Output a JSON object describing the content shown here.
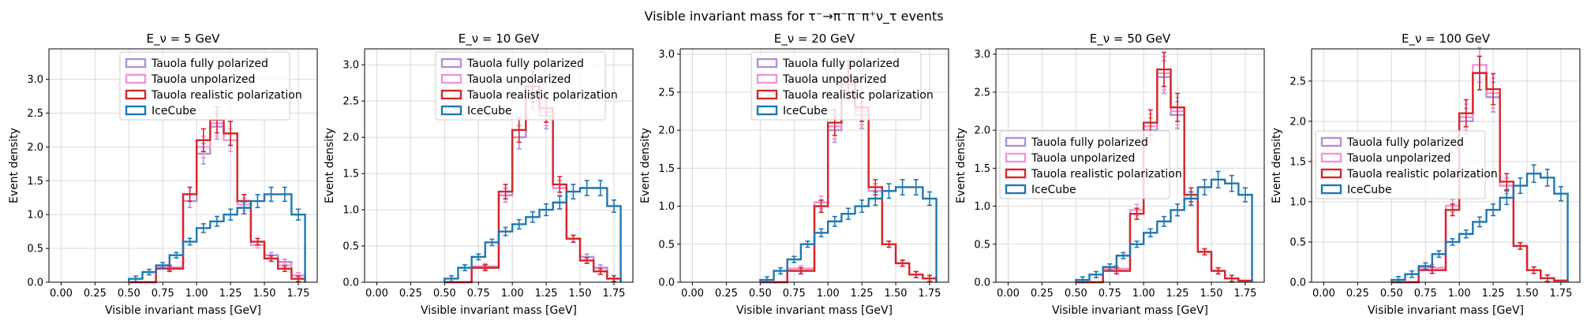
{
  "figure": {
    "suptitle": "Visible invariant mass for τ⁻→π⁻π⁻π⁺ν_τ events"
  },
  "colors": {
    "fully_polarized": "#b38fd9",
    "unpolarized": "#ee96d6",
    "realistic": "#d62728",
    "icecube": "#1f77b4"
  },
  "chart_data": [
    {
      "type": "step-histogram",
      "title": "E_ν = 5 GeV",
      "xlabel": "Visible invariant mass [GeV]",
      "ylabel": "Event density",
      "xlim": [
        -0.09,
        1.89
      ],
      "ylim": [
        0,
        3.45
      ],
      "xticks": [
        "0.00",
        "0.25",
        "0.50",
        "0.75",
        "1.00",
        "1.25",
        "1.50",
        "1.75"
      ],
      "yticks": [
        "0.0",
        "0.5",
        "1.0",
        "1.5",
        "2.0",
        "2.5",
        "3.0"
      ],
      "grid": true,
      "legend_position": "upper-center",
      "series": [
        {
          "name": "Tauola fully polarized",
          "color_key": "fully_polarized",
          "x": [
            0.5,
            0.7,
            0.9,
            1.0,
            1.1,
            1.2,
            1.3,
            1.4,
            1.5,
            1.6,
            1.7,
            1.8
          ],
          "y": [
            0,
            0.2,
            1.2,
            1.9,
            2.3,
            2.2,
            1.2,
            0.6,
            0.4,
            0.3,
            0.1,
            0
          ]
        },
        {
          "name": "Tauola unpolarized",
          "color_key": "unpolarized",
          "x": [
            0.5,
            0.7,
            0.9,
            1.0,
            1.1,
            1.2,
            1.3,
            1.4,
            1.5,
            1.6,
            1.7,
            1.8
          ],
          "y": [
            0,
            0.22,
            1.3,
            2.0,
            2.35,
            2.1,
            1.15,
            0.55,
            0.35,
            0.25,
            0.1,
            0
          ]
        },
        {
          "name": "Tauola realistic polarization",
          "color_key": "realistic",
          "x": [
            0.5,
            0.7,
            0.9,
            1.0,
            1.1,
            1.2,
            1.3,
            1.4,
            1.5,
            1.6,
            1.7,
            1.8
          ],
          "y": [
            0,
            0.2,
            1.3,
            2.1,
            2.4,
            2.2,
            1.2,
            0.6,
            0.35,
            0.2,
            0.05,
            0
          ]
        },
        {
          "name": "IceCube",
          "color_key": "icecube",
          "x": [
            0.5,
            0.6,
            0.7,
            0.8,
            0.9,
            1.0,
            1.1,
            1.2,
            1.3,
            1.4,
            1.5,
            1.6,
            1.7,
            1.8
          ],
          "y": [
            0.05,
            0.15,
            0.25,
            0.4,
            0.6,
            0.8,
            0.9,
            1.0,
            1.1,
            1.2,
            1.3,
            1.3,
            1.0,
            0
          ]
        }
      ]
    },
    {
      "type": "step-histogram",
      "title": "E_ν = 10 GeV",
      "xlabel": "Visible invariant mass [GeV]",
      "ylabel": "Event density",
      "xlim": [
        -0.09,
        1.89
      ],
      "ylim": [
        0,
        3.22
      ],
      "xticks": [
        "0.00",
        "0.25",
        "0.50",
        "0.75",
        "1.00",
        "1.25",
        "1.50",
        "1.75"
      ],
      "yticks": [
        "0.0",
        "0.5",
        "1.0",
        "1.5",
        "2.0",
        "2.5",
        "3.0"
      ],
      "grid": true,
      "legend_position": "upper-center",
      "series": [
        {
          "name": "Tauola fully polarized",
          "color_key": "fully_polarized",
          "x": [
            0.5,
            0.7,
            0.9,
            1.0,
            1.1,
            1.2,
            1.3,
            1.4,
            1.5,
            1.6,
            1.7,
            1.8
          ],
          "y": [
            0,
            0.2,
            1.2,
            2.0,
            2.6,
            2.3,
            1.3,
            0.6,
            0.35,
            0.2,
            0.05,
            0
          ]
        },
        {
          "name": "Tauola unpolarized",
          "color_key": "unpolarized",
          "x": [
            0.5,
            0.7,
            0.9,
            1.0,
            1.1,
            1.2,
            1.3,
            1.4,
            1.5,
            1.6,
            1.7,
            1.8
          ],
          "y": [
            0,
            0.22,
            1.25,
            2.1,
            2.7,
            2.35,
            1.3,
            0.6,
            0.3,
            0.15,
            0.05,
            0
          ]
        },
        {
          "name": "Tauola realistic polarization",
          "color_key": "realistic",
          "x": [
            0.5,
            0.7,
            0.9,
            1.0,
            1.1,
            1.2,
            1.3,
            1.4,
            1.5,
            1.6,
            1.7,
            1.8
          ],
          "y": [
            0,
            0.2,
            1.25,
            2.1,
            2.7,
            2.4,
            1.35,
            0.6,
            0.3,
            0.15,
            0.05,
            0
          ]
        },
        {
          "name": "IceCube",
          "color_key": "icecube",
          "x": [
            0.5,
            0.6,
            0.7,
            0.8,
            0.9,
            1.0,
            1.1,
            1.2,
            1.3,
            1.4,
            1.5,
            1.6,
            1.7,
            1.8
          ],
          "y": [
            0.05,
            0.2,
            0.35,
            0.55,
            0.7,
            0.8,
            0.9,
            1.0,
            1.1,
            1.25,
            1.3,
            1.3,
            1.05,
            0
          ]
        }
      ]
    },
    {
      "type": "step-histogram",
      "title": "E_ν = 20 GeV",
      "xlabel": "Visible invariant mass [GeV]",
      "ylabel": "Event density",
      "xlim": [
        -0.09,
        1.89
      ],
      "ylim": [
        0,
        3.07
      ],
      "xticks": [
        "0.00",
        "0.25",
        "0.50",
        "0.75",
        "1.00",
        "1.25",
        "1.50",
        "1.75"
      ],
      "yticks": [
        "0.0",
        "0.5",
        "1.0",
        "1.5",
        "2.0",
        "2.5",
        "3.0"
      ],
      "grid": true,
      "legend_position": "upper-center",
      "series": [
        {
          "name": "Tauola fully polarized",
          "color_key": "fully_polarized",
          "x": [
            0.5,
            0.7,
            0.9,
            1.0,
            1.1,
            1.2,
            1.3,
            1.4,
            1.5,
            1.6,
            1.7,
            1.8
          ],
          "y": [
            0,
            0.15,
            1.0,
            2.0,
            2.6,
            2.2,
            1.2,
            0.5,
            0.25,
            0.1,
            0.05,
            0
          ]
        },
        {
          "name": "Tauola unpolarized",
          "color_key": "unpolarized",
          "x": [
            0.5,
            0.7,
            0.9,
            1.0,
            1.1,
            1.2,
            1.3,
            1.4,
            1.5,
            1.6,
            1.7,
            1.8
          ],
          "y": [
            0,
            0.18,
            1.05,
            2.05,
            2.65,
            2.25,
            1.2,
            0.5,
            0.25,
            0.1,
            0.05,
            0
          ]
        },
        {
          "name": "Tauola realistic polarization",
          "color_key": "realistic",
          "x": [
            0.5,
            0.7,
            0.9,
            1.0,
            1.1,
            1.2,
            1.3,
            1.4,
            1.5,
            1.6,
            1.7,
            1.8
          ],
          "y": [
            0,
            0.15,
            1.0,
            2.1,
            2.7,
            2.3,
            1.25,
            0.5,
            0.25,
            0.1,
            0.05,
            0
          ]
        },
        {
          "name": "IceCube",
          "color_key": "icecube",
          "x": [
            0.5,
            0.6,
            0.7,
            0.8,
            0.9,
            1.0,
            1.1,
            1.2,
            1.3,
            1.4,
            1.5,
            1.6,
            1.7,
            1.8
          ],
          "y": [
            0.03,
            0.15,
            0.3,
            0.5,
            0.65,
            0.8,
            0.9,
            1.0,
            1.1,
            1.2,
            1.25,
            1.25,
            1.1,
            0
          ]
        }
      ]
    },
    {
      "type": "step-histogram",
      "title": "E_ν = 50 GeV",
      "xlabel": "Visible invariant mass [GeV]",
      "ylabel": "Event density",
      "xlim": [
        -0.09,
        1.89
      ],
      "ylim": [
        0,
        3.07
      ],
      "xticks": [
        "0.00",
        "0.25",
        "0.50",
        "0.75",
        "1.00",
        "1.25",
        "1.50",
        "1.75"
      ],
      "yticks": [
        "0.0",
        "0.5",
        "1.0",
        "1.5",
        "2.0",
        "2.5",
        "3.0"
      ],
      "grid": true,
      "legend_position": "center-left",
      "series": [
        {
          "name": "Tauola fully polarized",
          "color_key": "fully_polarized",
          "x": [
            0.5,
            0.7,
            0.9,
            1.0,
            1.1,
            1.2,
            1.3,
            1.4,
            1.5,
            1.6,
            1.7,
            1.8
          ],
          "y": [
            0,
            0.15,
            0.9,
            2.0,
            2.7,
            2.2,
            1.1,
            0.4,
            0.15,
            0.05,
            0.02,
            0
          ]
        },
        {
          "name": "Tauola unpolarized",
          "color_key": "unpolarized",
          "x": [
            0.5,
            0.7,
            0.9,
            1.0,
            1.1,
            1.2,
            1.3,
            1.4,
            1.5,
            1.6,
            1.7,
            1.8
          ],
          "y": [
            0,
            0.18,
            0.95,
            2.05,
            2.75,
            2.25,
            1.1,
            0.4,
            0.15,
            0.05,
            0.02,
            0
          ]
        },
        {
          "name": "Tauola realistic polarization",
          "color_key": "realistic",
          "x": [
            0.5,
            0.7,
            0.9,
            1.0,
            1.1,
            1.2,
            1.3,
            1.4,
            1.5,
            1.6,
            1.7,
            1.8
          ],
          "y": [
            0,
            0.15,
            0.9,
            2.1,
            2.8,
            2.3,
            1.15,
            0.4,
            0.15,
            0.05,
            0.02,
            0
          ]
        },
        {
          "name": "IceCube",
          "color_key": "icecube",
          "x": [
            0.5,
            0.6,
            0.7,
            0.8,
            0.9,
            1.0,
            1.1,
            1.2,
            1.3,
            1.4,
            1.5,
            1.6,
            1.7,
            1.8
          ],
          "y": [
            0.03,
            0.1,
            0.2,
            0.35,
            0.5,
            0.65,
            0.8,
            0.95,
            1.1,
            1.25,
            1.35,
            1.3,
            1.15,
            0
          ]
        }
      ]
    },
    {
      "type": "step-histogram",
      "title": "E_ν = 100 GeV",
      "xlabel": "Visible invariant mass [GeV]",
      "ylabel": "Event density",
      "xlim": [
        -0.09,
        1.89
      ],
      "ylim": [
        0,
        2.9
      ],
      "xticks": [
        "0.00",
        "0.25",
        "0.50",
        "0.75",
        "1.00",
        "1.25",
        "1.50",
        "1.75"
      ],
      "yticks": [
        "0.0",
        "0.5",
        "1.0",
        "1.5",
        "2.0",
        "2.5"
      ],
      "grid": true,
      "legend_position": "center-left",
      "series": [
        {
          "name": "Tauola fully polarized",
          "color_key": "fully_polarized",
          "x": [
            0.5,
            0.7,
            0.9,
            1.0,
            1.1,
            1.2,
            1.3,
            1.4,
            1.5,
            1.6,
            1.7,
            1.8
          ],
          "y": [
            0,
            0.15,
            0.9,
            2.0,
            2.6,
            2.3,
            1.2,
            0.45,
            0.15,
            0.05,
            0.02,
            0
          ]
        },
        {
          "name": "Tauola unpolarized",
          "color_key": "unpolarized",
          "x": [
            0.5,
            0.7,
            0.9,
            1.0,
            1.1,
            1.2,
            1.3,
            1.4,
            1.5,
            1.6,
            1.7,
            1.8
          ],
          "y": [
            0,
            0.18,
            0.95,
            2.05,
            2.7,
            2.35,
            1.2,
            0.45,
            0.15,
            0.05,
            0.02,
            0
          ]
        },
        {
          "name": "Tauola realistic polarization",
          "color_key": "realistic",
          "x": [
            0.5,
            0.7,
            0.9,
            1.0,
            1.1,
            1.2,
            1.3,
            1.4,
            1.5,
            1.6,
            1.7,
            1.8
          ],
          "y": [
            0,
            0.15,
            0.9,
            2.1,
            2.6,
            2.4,
            1.25,
            0.45,
            0.15,
            0.05,
            0.02,
            0
          ]
        },
        {
          "name": "IceCube",
          "color_key": "icecube",
          "x": [
            0.5,
            0.6,
            0.7,
            0.8,
            0.9,
            1.0,
            1.1,
            1.2,
            1.3,
            1.4,
            1.5,
            1.6,
            1.7,
            1.8
          ],
          "y": [
            0.03,
            0.1,
            0.2,
            0.35,
            0.5,
            0.6,
            0.75,
            0.9,
            1.05,
            1.2,
            1.35,
            1.3,
            1.1,
            0
          ]
        }
      ]
    }
  ]
}
